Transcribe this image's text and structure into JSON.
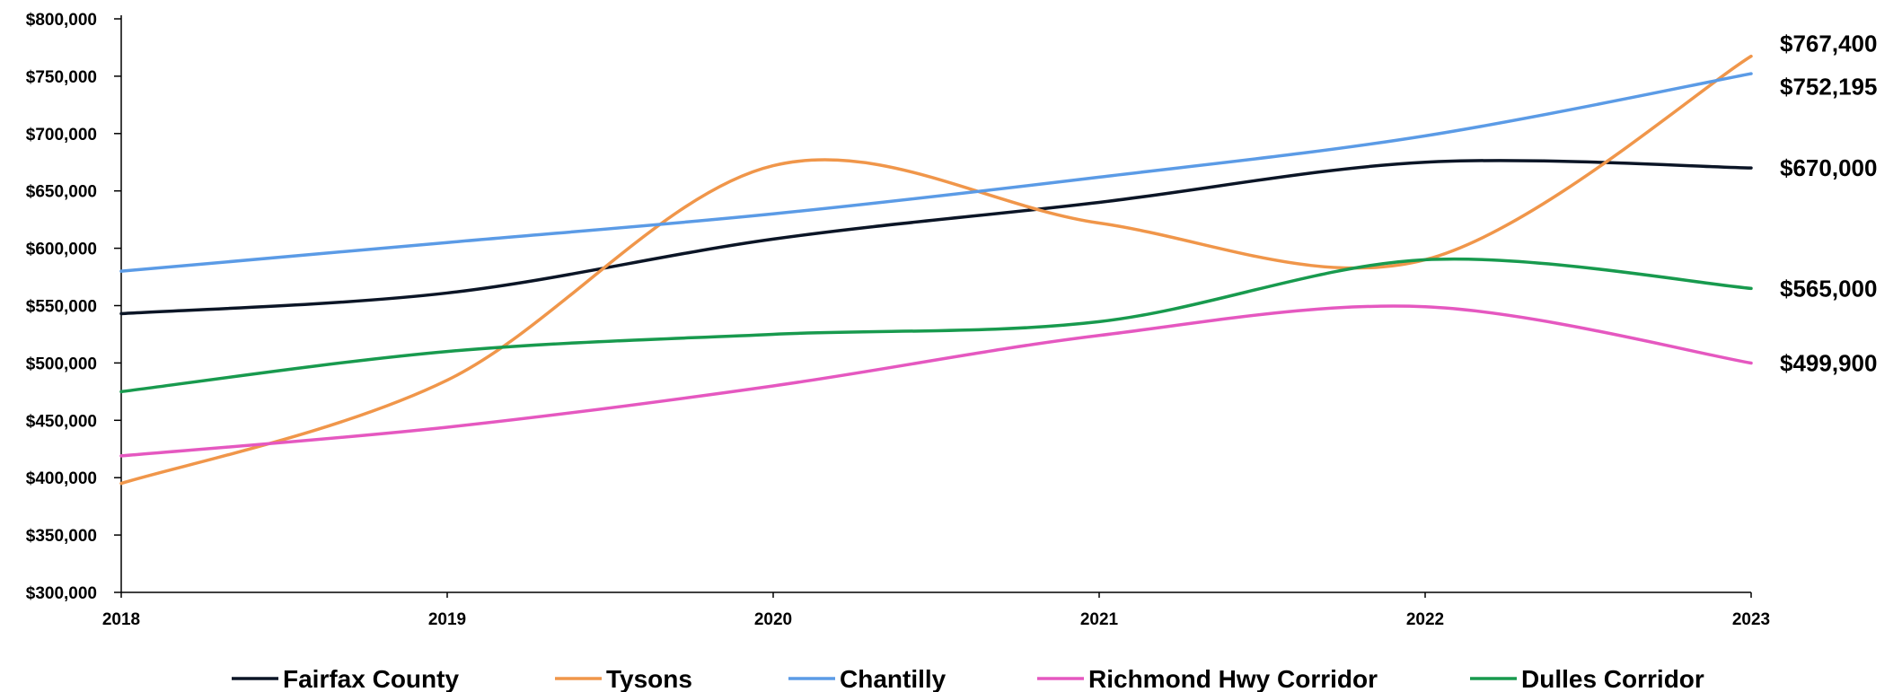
{
  "chart_data": {
    "type": "line",
    "title": "",
    "xlabel": "",
    "ylabel": "",
    "x": [
      2018,
      2019,
      2020,
      2021,
      2022,
      2023
    ],
    "x_tick_labels": [
      "2018",
      "2019",
      "2020",
      "2021",
      "2022",
      "2023"
    ],
    "ylim": [
      300000,
      800000
    ],
    "y_ticks": [
      300000,
      350000,
      400000,
      450000,
      500000,
      550000,
      600000,
      650000,
      700000,
      750000,
      800000
    ],
    "y_tick_labels": [
      "$300,000",
      "$350,000",
      "$400,000",
      "$450,000",
      "$500,000",
      "$550,000",
      "$600,000",
      "$650,000",
      "$700,000",
      "$750,000",
      "$800,000"
    ],
    "grid": false,
    "smooth": true,
    "legend_position": "bottom",
    "series": [
      {
        "name": "Fairfax County",
        "color": "#0b1526",
        "values": [
          543000,
          561000,
          608000,
          640000,
          675000,
          670000
        ],
        "end_label": "$670,000"
      },
      {
        "name": "Tysons",
        "color": "#f0964a",
        "values": [
          395000,
          485000,
          672000,
          622000,
          590000,
          767400
        ],
        "end_label": "$767,400"
      },
      {
        "name": "Chantilly",
        "color": "#5b9be6",
        "values": [
          580000,
          605000,
          630000,
          662000,
          698000,
          752195
        ],
        "end_label": "$752,195"
      },
      {
        "name": "Richmond Hwy Corridor",
        "color": "#e558c0",
        "values": [
          419000,
          444000,
          480000,
          524000,
          549000,
          499900
        ],
        "end_label": "$499,900"
      },
      {
        "name": "Dulles Corridor",
        "color": "#189a4e",
        "values": [
          475000,
          510000,
          525000,
          536000,
          590000,
          565000
        ],
        "end_label": "$565,000"
      }
    ]
  }
}
